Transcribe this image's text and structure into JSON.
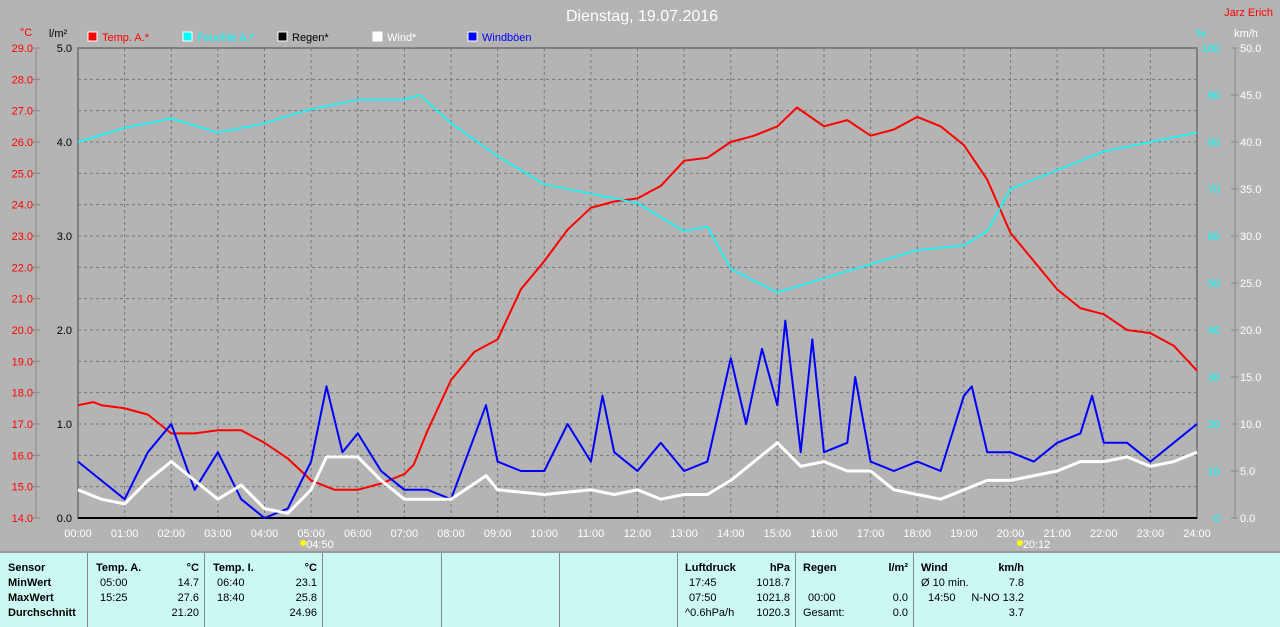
{
  "header": {
    "title": "Dienstag, 19.07.2016",
    "author": "Jarz Erich"
  },
  "chart_data": {
    "type": "line",
    "title": "Dienstag, 19.07.2016",
    "legend": [
      {
        "label": "Temp. A.*",
        "color": "#ff0000"
      },
      {
        "label": "Feuchte A.*",
        "color": "#00ffff"
      },
      {
        "label": "Regen*",
        "color": "#000000"
      },
      {
        "label": "Wind*",
        "color": "#ffffff"
      },
      {
        "label": "Windböen",
        "color": "#0000ff"
      }
    ],
    "axes": {
      "temp": {
        "unit": "°C",
        "range": [
          14,
          29
        ],
        "ticks": [
          "29.0",
          "28.0",
          "27.0",
          "26.0",
          "25.0",
          "24.0",
          "23.0",
          "22.0",
          "21.0",
          "20.0",
          "19.0",
          "18.0",
          "17.0",
          "16.0",
          "15.0",
          "14.0"
        ]
      },
      "rain": {
        "unit": "l/m²",
        "range": [
          0,
          5
        ],
        "ticks": [
          "5.0",
          "4.0",
          "3.0",
          "2.0",
          "1.0",
          "0.0"
        ]
      },
      "humidity": {
        "unit": "%",
        "range": [
          0,
          100
        ],
        "ticks": [
          "100",
          "90",
          "80",
          "70",
          "60",
          "50",
          "40",
          "30",
          "20",
          "10",
          "0"
        ]
      },
      "wind": {
        "unit": "km/h",
        "range": [
          0,
          50
        ],
        "ticks": [
          "50.0",
          "45.0",
          "40.0",
          "35.0",
          "30.0",
          "25.0",
          "20.0",
          "15.0",
          "10.0",
          "5.0",
          "0.0"
        ]
      },
      "x": {
        "range": [
          0,
          24
        ],
        "ticks": [
          "00:00",
          "01:00",
          "02:00",
          "03:00",
          "04:00",
          "05:00",
          "06:00",
          "07:00",
          "08:00",
          "09:00",
          "10:00",
          "11:00",
          "12:00",
          "13:00",
          "14:00",
          "15:00",
          "16:00",
          "17:00",
          "18:00",
          "19:00",
          "20:00",
          "21:00",
          "22:00",
          "23:00",
          "24:00"
        ]
      }
    },
    "markers": {
      "sunrise": {
        "time": 4.83,
        "label": "04:50"
      },
      "sunset": {
        "time": 20.2,
        "label": "20:12"
      }
    },
    "series": [
      {
        "name": "Temp. A.",
        "axis": "temp",
        "color": "#ff0000",
        "points": [
          [
            0,
            17.6
          ],
          [
            0.33,
            17.7
          ],
          [
            0.5,
            17.6
          ],
          [
            1,
            17.5
          ],
          [
            1.5,
            17.3
          ],
          [
            1.75,
            17.0
          ],
          [
            2,
            16.7
          ],
          [
            2.5,
            16.7
          ],
          [
            3,
            16.8
          ],
          [
            3.5,
            16.8
          ],
          [
            4,
            16.4
          ],
          [
            4.5,
            15.9
          ],
          [
            5,
            15.2
          ],
          [
            5.5,
            14.9
          ],
          [
            6,
            14.9
          ],
          [
            6.5,
            15.1
          ],
          [
            7,
            15.4
          ],
          [
            7.2,
            15.7
          ],
          [
            7.5,
            16.8
          ],
          [
            8,
            18.4
          ],
          [
            8.5,
            19.3
          ],
          [
            9,
            19.7
          ],
          [
            9.5,
            21.3
          ],
          [
            10,
            22.2
          ],
          [
            10.5,
            23.2
          ],
          [
            11,
            23.9
          ],
          [
            11.5,
            24.1
          ],
          [
            12,
            24.2
          ],
          [
            12.5,
            24.6
          ],
          [
            13,
            25.4
          ],
          [
            13.5,
            25.5
          ],
          [
            14,
            26.0
          ],
          [
            14.5,
            26.2
          ],
          [
            15,
            26.5
          ],
          [
            15.42,
            27.1
          ],
          [
            16,
            26.5
          ],
          [
            16.5,
            26.7
          ],
          [
            17,
            26.2
          ],
          [
            17.5,
            26.4
          ],
          [
            18,
            26.8
          ],
          [
            18.5,
            26.5
          ],
          [
            19,
            25.9
          ],
          [
            19.5,
            24.8
          ],
          [
            20,
            23.1
          ],
          [
            20.5,
            22.2
          ],
          [
            21,
            21.3
          ],
          [
            21.5,
            20.7
          ],
          [
            22,
            20.5
          ],
          [
            22.5,
            20.0
          ],
          [
            23,
            19.9
          ],
          [
            23.5,
            19.5
          ],
          [
            24,
            18.7
          ]
        ]
      },
      {
        "name": "Feuchte A.",
        "axis": "humidity",
        "color": "#00ffff",
        "points": [
          [
            0,
            80
          ],
          [
            1,
            83
          ],
          [
            2,
            85
          ],
          [
            3,
            82
          ],
          [
            4,
            84
          ],
          [
            5,
            87
          ],
          [
            6,
            89
          ],
          [
            7,
            89
          ],
          [
            7.33,
            90
          ],
          [
            8,
            84
          ],
          [
            9,
            77
          ],
          [
            10,
            71
          ],
          [
            11,
            69
          ],
          [
            12,
            67
          ],
          [
            13,
            61
          ],
          [
            13.5,
            62
          ],
          [
            14,
            53
          ],
          [
            15,
            48
          ],
          [
            16,
            51
          ],
          [
            17,
            54
          ],
          [
            18,
            57
          ],
          [
            19,
            58
          ],
          [
            19.5,
            61
          ],
          [
            20,
            70
          ],
          [
            21,
            74
          ],
          [
            22,
            78
          ],
          [
            23,
            80
          ],
          [
            24,
            82
          ]
        ]
      },
      {
        "name": "Regen",
        "axis": "rain",
        "color": "#000000",
        "points": [
          [
            0,
            0
          ],
          [
            24,
            0
          ]
        ]
      },
      {
        "name": "Windböen",
        "axis": "wind",
        "color": "#0000ff",
        "points": [
          [
            0,
            6
          ],
          [
            0.5,
            4
          ],
          [
            1,
            2
          ],
          [
            1.5,
            7
          ],
          [
            2,
            10
          ],
          [
            2.5,
            3
          ],
          [
            3,
            7
          ],
          [
            3.5,
            2
          ],
          [
            4,
            0
          ],
          [
            4.5,
            1
          ],
          [
            5,
            6
          ],
          [
            5.33,
            14
          ],
          [
            5.67,
            7
          ],
          [
            6,
            9
          ],
          [
            6.5,
            5
          ],
          [
            7,
            3
          ],
          [
            7.5,
            3
          ],
          [
            8,
            2
          ],
          [
            8.75,
            12
          ],
          [
            9,
            6
          ],
          [
            9.5,
            5
          ],
          [
            10,
            5
          ],
          [
            10.5,
            10
          ],
          [
            11,
            6
          ],
          [
            11.25,
            13
          ],
          [
            11.5,
            7
          ],
          [
            12,
            5
          ],
          [
            12.5,
            8
          ],
          [
            13,
            5
          ],
          [
            13.5,
            6
          ],
          [
            14,
            17
          ],
          [
            14.33,
            10
          ],
          [
            14.67,
            18
          ],
          [
            15,
            12
          ],
          [
            15.17,
            21
          ],
          [
            15.5,
            7
          ],
          [
            15.75,
            19
          ],
          [
            16,
            7
          ],
          [
            16.5,
            8
          ],
          [
            16.67,
            15
          ],
          [
            17,
            6
          ],
          [
            17.5,
            5
          ],
          [
            18,
            6
          ],
          [
            18.5,
            5
          ],
          [
            19,
            13
          ],
          [
            19.17,
            14
          ],
          [
            19.5,
            7
          ],
          [
            20,
            7
          ],
          [
            20.5,
            6
          ],
          [
            21,
            8
          ],
          [
            21.5,
            9
          ],
          [
            21.75,
            13
          ],
          [
            22,
            8
          ],
          [
            22.5,
            8
          ],
          [
            23,
            6
          ],
          [
            23.5,
            8
          ],
          [
            24,
            10
          ]
        ]
      },
      {
        "name": "Wind",
        "axis": "wind",
        "color": "#ffffff",
        "points": [
          [
            0,
            3
          ],
          [
            0.5,
            2
          ],
          [
            1,
            1.5
          ],
          [
            1.5,
            4
          ],
          [
            2,
            6
          ],
          [
            2.5,
            4
          ],
          [
            3,
            2
          ],
          [
            3.5,
            3.5
          ],
          [
            4,
            1
          ],
          [
            4.5,
            0.5
          ],
          [
            5,
            3
          ],
          [
            5.33,
            6.5
          ],
          [
            6,
            6.5
          ],
          [
            6.5,
            4
          ],
          [
            7,
            2
          ],
          [
            7.5,
            2
          ],
          [
            8,
            2
          ],
          [
            8.75,
            4.5
          ],
          [
            9,
            3
          ],
          [
            10,
            2.5
          ],
          [
            11,
            3
          ],
          [
            11.5,
            2.5
          ],
          [
            12,
            3
          ],
          [
            12.5,
            2
          ],
          [
            13,
            2.5
          ],
          [
            13.5,
            2.5
          ],
          [
            14,
            4
          ],
          [
            14.5,
            6
          ],
          [
            15,
            8
          ],
          [
            15.5,
            5.5
          ],
          [
            16,
            6
          ],
          [
            16.5,
            5
          ],
          [
            17,
            5
          ],
          [
            17.5,
            3
          ],
          [
            18,
            2.5
          ],
          [
            18.5,
            2
          ],
          [
            19,
            3
          ],
          [
            19.5,
            4
          ],
          [
            20,
            4
          ],
          [
            21,
            5
          ],
          [
            21.5,
            6
          ],
          [
            22,
            6
          ],
          [
            22.5,
            6.5
          ],
          [
            23,
            5.5
          ],
          [
            23.5,
            6
          ],
          [
            24,
            7
          ]
        ]
      }
    ]
  },
  "table": {
    "sensor": {
      "header": "Sensor",
      "rows": [
        "MinWert",
        "MaxWert",
        "Durchschnitt"
      ]
    },
    "temp_a": {
      "header": "Temp. A.",
      "unit": "°C",
      "min_time": "05:00",
      "min": "14.7",
      "max_time": "15:25",
      "max": "27.6",
      "avg": "21.20"
    },
    "temp_i": {
      "header": "Temp. I.",
      "unit": "°C",
      "min_time": "06:40",
      "min": "23.1",
      "max_time": "18:40",
      "max": "25.8",
      "avg": "24.96"
    },
    "pressure": {
      "header": "Luftdruck",
      "unit": "hPa",
      "min_time": "17:45",
      "min": "1018.7",
      "max_time": "07:50",
      "max": "1021.8",
      "trend": "^0.6hPa/h",
      "current": "1020.3"
    },
    "rain": {
      "header": "Regen",
      "unit": "l/m²",
      "max_time": "00:00",
      "max": "0.0",
      "total_label": "Gesamt:",
      "total": "0.0"
    },
    "wind": {
      "header": "Wind",
      "unit": "km/h",
      "avg_label": "Ø 10 min.",
      "avg": "7.8",
      "max_time": "14:50",
      "max": "N-NO 13.2",
      "mean": "3.7"
    }
  }
}
